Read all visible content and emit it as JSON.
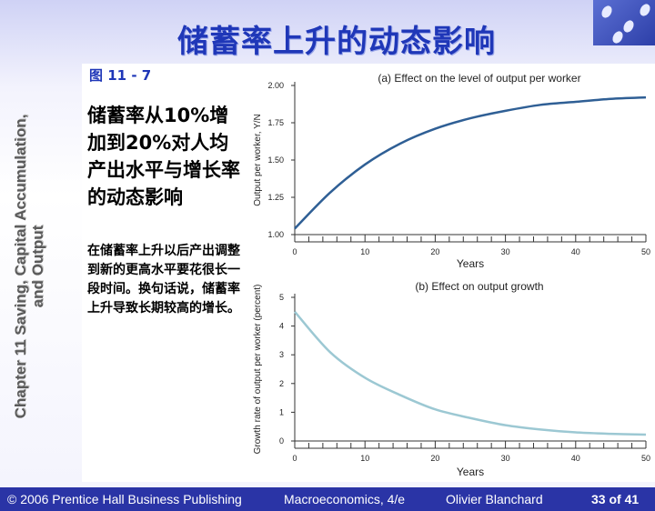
{
  "slide": {
    "title": "储蓄率上升的动态影响",
    "vertical_line1": "Chapter 11 Saving, Capital Accumulation,",
    "vertical_line2": "and Output",
    "figure_label": "图 11 - 7",
    "heading": "储蓄率从10%增加到20%对人均产出水平与增长率的动态影响",
    "body": "在储蓄率上升以后产出调整到新的更高水平要花很长一段时间。换句话说，储蓄率上升导致长期较高的增长。"
  },
  "footer": {
    "copyright": "© 2006 Prentice Hall Business Publishing",
    "book": "Macroeconomics, 4/e",
    "author": "Olivier Blanchard",
    "page": "33 of 41"
  },
  "colors": {
    "title": "#1f37b8",
    "footer_bg": "#2a34a6",
    "series_a": "#2f5f95",
    "series_b": "#9cc8d3"
  },
  "chart_data": [
    {
      "type": "line",
      "title": "(a) Effect on the level of output per worker",
      "xlabel": "Years",
      "ylabel": "Output per worker, Y/N",
      "xlim": [
        0,
        50
      ],
      "ylim": [
        1.0,
        2.0
      ],
      "xticks": [
        0,
        10,
        20,
        30,
        40,
        50
      ],
      "yticks": [
        1.0,
        1.25,
        1.5,
        1.75,
        2.0
      ],
      "ytick_labels": [
        "1.00",
        "1.25",
        "1.50",
        "1.75",
        "2.00"
      ],
      "series": [
        {
          "x": [
            0,
            5,
            10,
            15,
            20,
            25,
            30,
            35,
            40,
            45,
            50
          ],
          "values": [
            1.04,
            1.28,
            1.47,
            1.61,
            1.71,
            1.78,
            1.83,
            1.87,
            1.89,
            1.91,
            1.92
          ]
        }
      ]
    },
    {
      "type": "line",
      "title": "(b) Effect on output growth",
      "xlabel": "Years",
      "ylabel": "Growth rate of output per worker (percent)",
      "xlim": [
        0,
        50
      ],
      "ylim": [
        0,
        5
      ],
      "xticks": [
        0,
        10,
        20,
        30,
        40,
        50
      ],
      "yticks": [
        0,
        1,
        2,
        3,
        4,
        5
      ],
      "ytick_labels": [
        "0",
        "1",
        "2",
        "3",
        "4",
        "5"
      ],
      "series": [
        {
          "x": [
            0,
            5,
            10,
            15,
            20,
            25,
            30,
            35,
            40,
            45,
            50
          ],
          "values": [
            4.5,
            3.1,
            2.2,
            1.6,
            1.1,
            0.8,
            0.55,
            0.4,
            0.3,
            0.25,
            0.22
          ]
        }
      ]
    }
  ]
}
